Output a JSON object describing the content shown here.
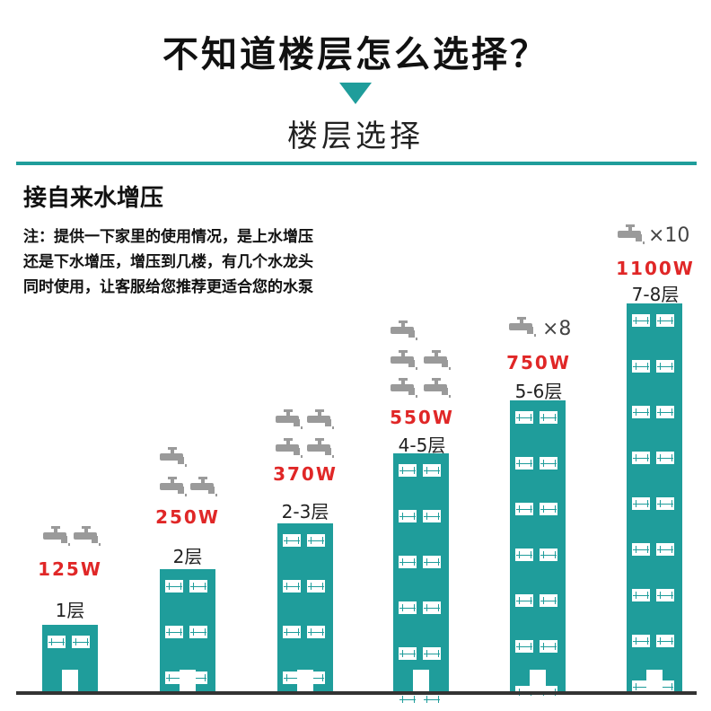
{
  "header": {
    "main_title": "不知道楼层怎么选择？",
    "sub_title": "楼层选择"
  },
  "section": {
    "title": "接自来水增压",
    "note_lines": [
      "注：提供一下家里的使用情况，是上水增压",
      "还是下水增压，增压到几楼，有几个水龙头",
      "同时使用，让客服给您推荐更适合您的水泵"
    ]
  },
  "tiers": [
    {
      "power": "125W",
      "floors": "1层",
      "taps": 2,
      "taps_label": ""
    },
    {
      "power": "250W",
      "floors": "2层",
      "taps": 3,
      "taps_label": ""
    },
    {
      "power": "370W",
      "floors": "2-3层",
      "taps": 4,
      "taps_label": ""
    },
    {
      "power": "550W",
      "floors": "4-5层",
      "taps": 6,
      "taps_label": ""
    },
    {
      "power": "750W",
      "floors": "5-6层",
      "taps": 8,
      "taps_label": "×8"
    },
    {
      "power": "1100W",
      "floors": "7-8层",
      "taps": 10,
      "taps_label": "×10"
    }
  ],
  "colors": {
    "accent": "#1f9d9b",
    "power": "#e02727",
    "tap": "#9a9a9a"
  }
}
